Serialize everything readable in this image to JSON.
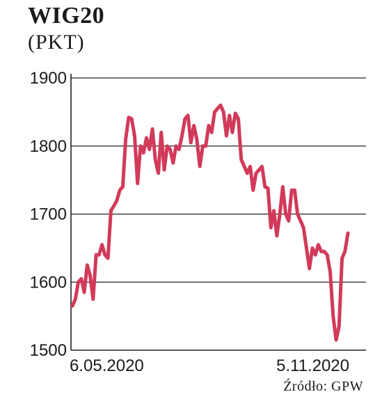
{
  "title": "WIG20",
  "subtitle": "(PKT)",
  "source": "Źródło: GPW",
  "colors": {
    "line": "#d23a5a",
    "grid": "#222222",
    "text": "#1a1a1a"
  },
  "chart_data": {
    "type": "line",
    "title": "WIG20",
    "ylabel": "(PKT)",
    "xlabel": "",
    "ylim": [
      1500,
      1900
    ],
    "yticks": [
      1500,
      1600,
      1700,
      1800,
      1900
    ],
    "xtick_labels": [
      "6.05.2020",
      "5.11.2020"
    ],
    "grid": "horizontal",
    "series": [
      {
        "values": [
          1565,
          1575,
          1600,
          1605,
          1585,
          1625,
          1610,
          1575,
          1640,
          1640,
          1655,
          1640,
          1635,
          1705,
          1712,
          1720,
          1735,
          1740,
          1810,
          1842,
          1840,
          1815,
          1745,
          1800,
          1790,
          1812,
          1795,
          1825,
          1780,
          1760,
          1820,
          1765,
          1800,
          1795,
          1775,
          1800,
          1795,
          1815,
          1840,
          1845,
          1805,
          1830,
          1810,
          1770,
          1800,
          1800,
          1830,
          1820,
          1850,
          1855,
          1860,
          1850,
          1815,
          1845,
          1820,
          1848,
          1840,
          1780,
          1770,
          1760,
          1770,
          1735,
          1760,
          1765,
          1770,
          1740,
          1738,
          1680,
          1705,
          1668,
          1700,
          1740,
          1700,
          1690,
          1735,
          1735,
          1700,
          1690,
          1680,
          1650,
          1620,
          1650,
          1640,
          1655,
          1645,
          1645,
          1640,
          1615,
          1550,
          1515,
          1535,
          1635,
          1645,
          1672
        ]
      }
    ]
  }
}
